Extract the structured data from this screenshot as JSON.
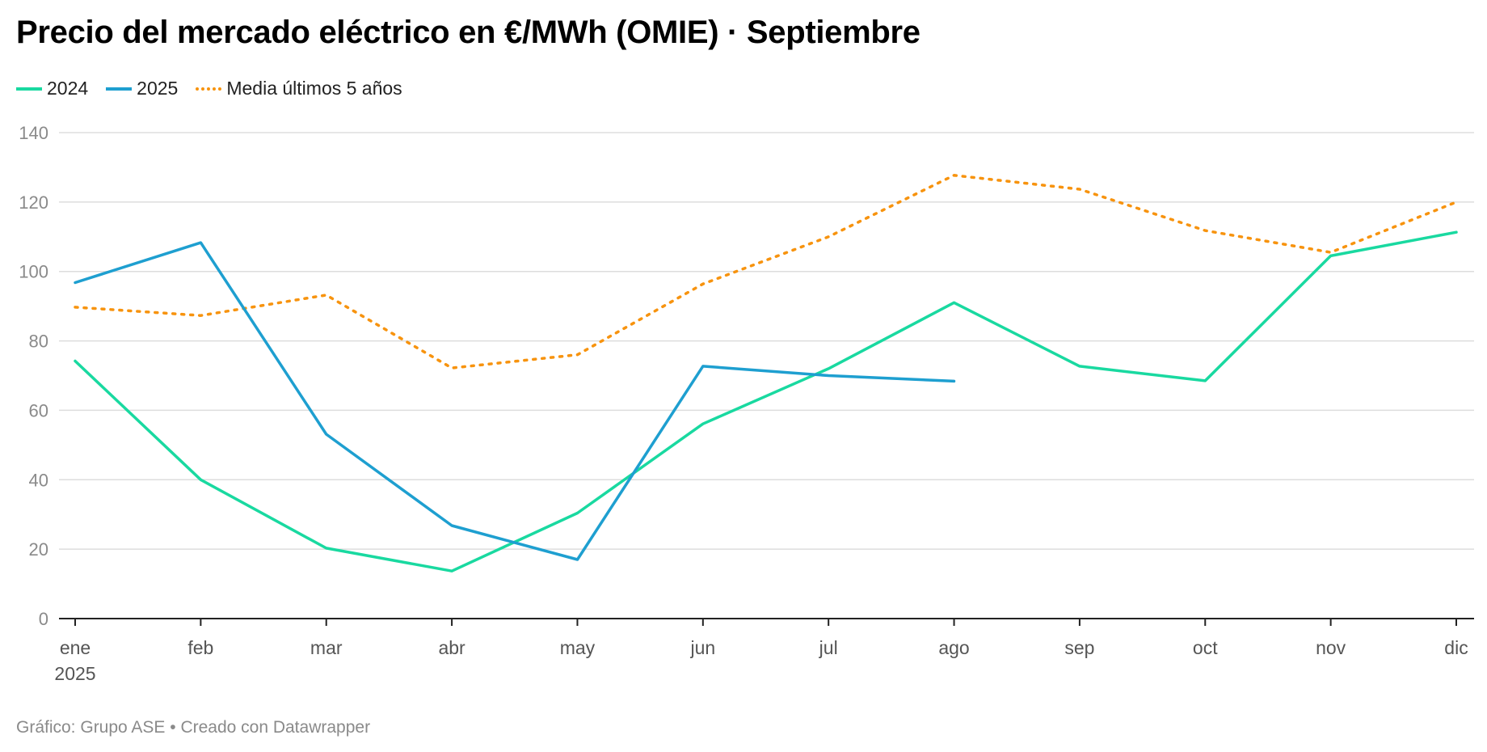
{
  "title": "Precio del mercado eléctrico en €/MWh (OMIE) · Septiembre",
  "footer": "Gráfico: Grupo ASE • Creado con Datawrapper",
  "chart_data": {
    "type": "line",
    "title": "Precio del mercado eléctrico en €/MWh (OMIE) · Septiembre",
    "xlabel": "",
    "ylabel": "",
    "categories": [
      "ene",
      "feb",
      "mar",
      "abr",
      "may",
      "jun",
      "jul",
      "ago",
      "sep",
      "oct",
      "nov",
      "dic"
    ],
    "year_label": "2025",
    "ylim": [
      0,
      140
    ],
    "yticks": [
      0,
      20,
      40,
      60,
      80,
      100,
      120,
      140
    ],
    "grid": true,
    "legend_position": "top-left",
    "series": [
      {
        "name": "2024",
        "color": "#19d9a0",
        "style": "solid",
        "values": [
          74.2,
          40,
          20.3,
          13.7,
          30.4,
          56.1,
          72,
          91,
          72.7,
          68.5,
          104.5,
          111.3
        ]
      },
      {
        "name": "2025",
        "color": "#1e9fd0",
        "style": "solid",
        "values": [
          96.8,
          108.3,
          53.1,
          26.8,
          17,
          72.7,
          70,
          68.4,
          null,
          null,
          null,
          null
        ]
      },
      {
        "name": "Media últimos 5 años",
        "color": "#f7930e",
        "style": "dotted",
        "values": [
          89.7,
          87.3,
          93.2,
          72.2,
          76,
          96.4,
          110,
          127.7,
          123.7,
          111.8,
          105.5,
          120
        ]
      }
    ]
  }
}
